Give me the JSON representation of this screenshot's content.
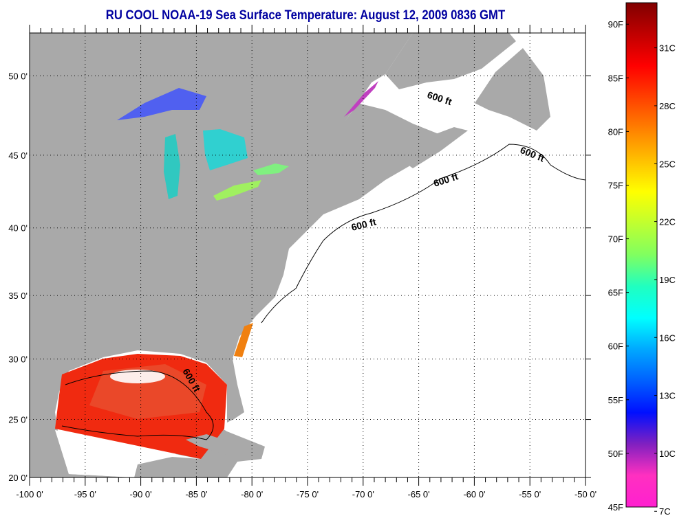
{
  "title": "RU COOL  NOAA-19  Sea Surface Temperature:  August 12, 2009 0836 GMT",
  "map": {
    "lon_range": [
      -100,
      -50
    ],
    "lat_range": [
      20,
      52.5
    ],
    "lon_labels": [
      {
        "value": -100,
        "label": "-100 0'"
      },
      {
        "value": -95,
        "label": "-95 0'"
      },
      {
        "value": -90,
        "label": "-90 0'"
      },
      {
        "value": -85,
        "label": "-85 0'"
      },
      {
        "value": -80,
        "label": "-80 0'"
      },
      {
        "value": -75,
        "label": "-75 0'"
      },
      {
        "value": -70,
        "label": "-70 0'"
      },
      {
        "value": -65,
        "label": "-65 0'"
      },
      {
        "value": -60,
        "label": "-60 0'"
      },
      {
        "value": -55,
        "label": "-55 0'"
      },
      {
        "value": -50,
        "label": "-50 0'"
      }
    ],
    "lat_labels": [
      {
        "value": 50,
        "label": "50 0'"
      },
      {
        "value": 45,
        "label": "45 0'"
      },
      {
        "value": 40,
        "label": "40 0'"
      },
      {
        "value": 35,
        "label": "35 0'"
      },
      {
        "value": 30,
        "label": "30 0'"
      },
      {
        "value": 25,
        "label": "25 0'"
      },
      {
        "value": 20,
        "label": "20 0'"
      }
    ],
    "contour_labels": [
      "600 ft",
      "600 ft",
      "600 ft",
      "600 ft",
      "600 ft"
    ],
    "colors": {
      "land": "#a9a9a9",
      "ocean": "#ffffff",
      "title": "#0000a0"
    }
  },
  "colorbar": {
    "range_f": [
      45,
      92
    ],
    "f_labels": [
      "90F",
      "85F",
      "80F",
      "75F",
      "70F",
      "65F",
      "60F",
      "55F",
      "50F",
      "45F"
    ],
    "f_values": [
      90,
      85,
      80,
      75,
      70,
      65,
      60,
      55,
      50,
      45
    ],
    "c_labels": [
      "31C",
      "28C",
      "25C",
      "22C",
      "19C",
      "16C",
      "13C",
      "10C",
      "7C"
    ],
    "c_values": [
      31,
      28,
      25,
      22,
      19,
      16,
      13,
      10,
      7
    ],
    "stops": [
      "#ff20d0",
      "#ff30c0",
      "#8020c0",
      "#0010ff",
      "#0060ff",
      "#00a8ff",
      "#00ffff",
      "#20ffc0",
      "#80ff60",
      "#c0ff30",
      "#ffff00",
      "#ffc000",
      "#ff8000",
      "#ff4000",
      "#ff0000",
      "#c00000",
      "#800000"
    ]
  }
}
